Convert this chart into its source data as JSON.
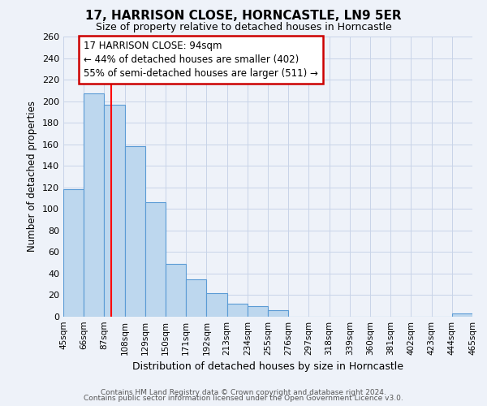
{
  "title": "17, HARRISON CLOSE, HORNCASTLE, LN9 5ER",
  "subtitle": "Size of property relative to detached houses in Horncastle",
  "xlabel": "Distribution of detached houses by size in Horncastle",
  "ylabel": "Number of detached properties",
  "bar_values": [
    118,
    207,
    197,
    158,
    106,
    49,
    35,
    22,
    12,
    10,
    6,
    0,
    0,
    0,
    0,
    0,
    0,
    0,
    0,
    3
  ],
  "bin_edges": [
    45,
    66,
    87,
    108,
    129,
    150,
    171,
    192,
    213,
    234,
    255,
    276,
    297,
    318,
    339,
    360,
    381,
    402,
    423,
    444,
    465
  ],
  "bin_labels": [
    "45sqm",
    "66sqm",
    "87sqm",
    "108sqm",
    "129sqm",
    "150sqm",
    "171sqm",
    "192sqm",
    "213sqm",
    "234sqm",
    "255sqm",
    "276sqm",
    "297sqm",
    "318sqm",
    "339sqm",
    "360sqm",
    "381sqm",
    "402sqm",
    "423sqm",
    "444sqm",
    "465sqm"
  ],
  "bar_color": "#bdd7ee",
  "bar_edge_color": "#5b9bd5",
  "grid_color": "#c8d4e8",
  "background_color": "#eef2f9",
  "red_line_x": 94,
  "annotation_text": "17 HARRISON CLOSE: 94sqm\n← 44% of detached houses are smaller (402)\n55% of semi-detached houses are larger (511) →",
  "annotation_box_color": "#ffffff",
  "annotation_box_edge": "#cc0000",
  "ylim": [
    0,
    260
  ],
  "yticks": [
    0,
    20,
    40,
    60,
    80,
    100,
    120,
    140,
    160,
    180,
    200,
    220,
    240,
    260
  ],
  "footer_line1": "Contains HM Land Registry data © Crown copyright and database right 2024.",
  "footer_line2": "Contains public sector information licensed under the Open Government Licence v3.0."
}
